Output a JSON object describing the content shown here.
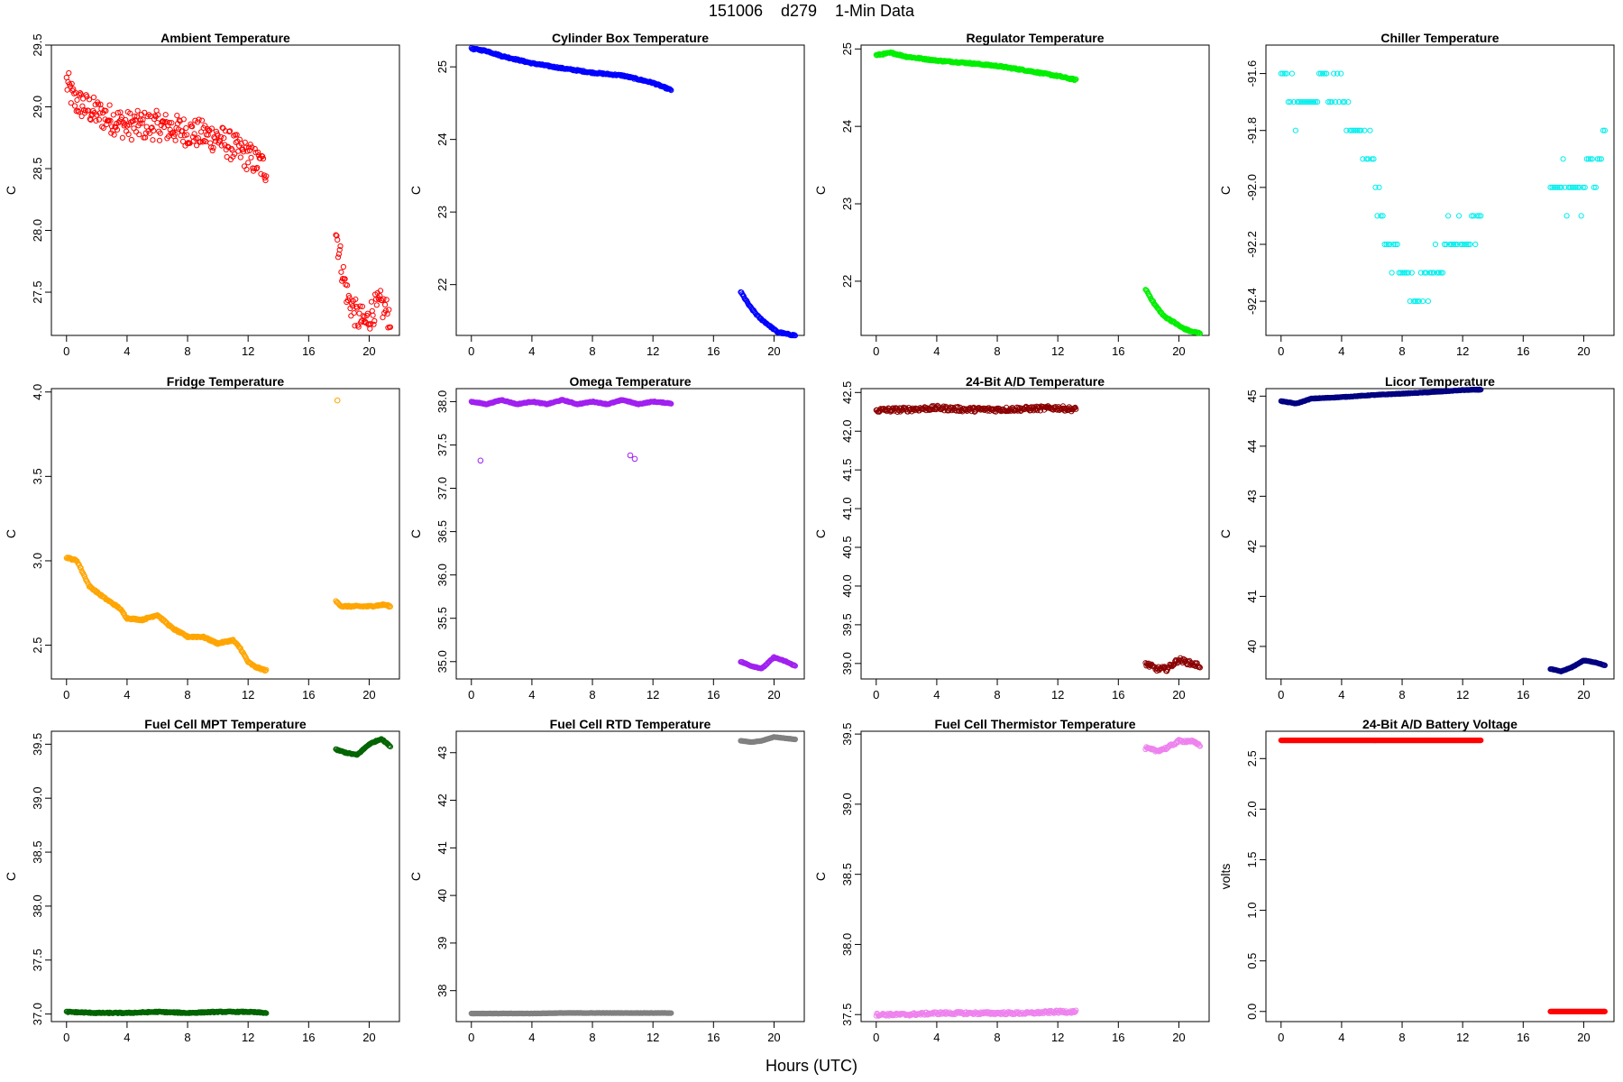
{
  "page": {
    "title": "151006    d279    1-Min Data",
    "xlabel": "Hours (UTC)"
  },
  "chart_data": [
    {
      "type": "scatter",
      "title": "Ambient Temperature",
      "ylabel": "C",
      "color": "#ff0000",
      "xlim": [
        -1,
        22
      ],
      "ylim": [
        27.15,
        29.5
      ],
      "xticks": [
        0,
        4,
        8,
        12,
        16,
        20
      ],
      "yticks": [
        27.5,
        28.0,
        28.5,
        29.0,
        29.5
      ],
      "ytick_decimals": 1,
      "noise": 0.12,
      "scatter_pattern": false,
      "segments": [
        {
          "x": [
            0,
            0.5,
            2,
            4,
            6,
            8,
            10,
            12,
            13.2
          ],
          "y": [
            29.2,
            29.05,
            28.95,
            28.85,
            28.85,
            28.8,
            28.75,
            28.6,
            28.5
          ]
        },
        {
          "x": [
            17.8,
            18.2,
            18.6,
            19.2,
            19.8,
            20.2,
            20.8,
            21.4
          ],
          "y": [
            28.0,
            27.7,
            27.45,
            27.3,
            27.25,
            27.35,
            27.4,
            27.3
          ]
        }
      ]
    },
    {
      "type": "scatter",
      "title": "Cylinder Box Temperature",
      "ylabel": "C",
      "color": "#0000ff",
      "xlim": [
        -1,
        22
      ],
      "ylim": [
        21.3,
        25.3
      ],
      "xticks": [
        0,
        4,
        8,
        12,
        16,
        20
      ],
      "yticks": [
        22,
        23,
        24,
        25
      ],
      "ytick_decimals": 0,
      "noise": 0.01,
      "scatter_pattern": false,
      "segments": [
        {
          "x": [
            0,
            1,
            2,
            4,
            6,
            8,
            10,
            12,
            13.2
          ],
          "y": [
            25.25,
            25.22,
            25.15,
            25.05,
            24.98,
            24.92,
            24.88,
            24.78,
            24.68
          ]
        },
        {
          "x": [
            17.8,
            18.4,
            19,
            19.6,
            20.2,
            20.8,
            21.4
          ],
          "y": [
            21.9,
            21.7,
            21.55,
            21.45,
            21.35,
            21.32,
            21.3
          ]
        }
      ]
    },
    {
      "type": "scatter",
      "title": "Regulator Temperature",
      "ylabel": "C",
      "color": "#00ee00",
      "xlim": [
        -1,
        22
      ],
      "ylim": [
        21.3,
        25.05
      ],
      "xticks": [
        0,
        4,
        8,
        12,
        16,
        20
      ],
      "yticks": [
        22,
        23,
        24,
        25
      ],
      "ytick_decimals": 0,
      "noise": 0.01,
      "scatter_pattern": false,
      "segments": [
        {
          "x": [
            0,
            1,
            2,
            4,
            6,
            8,
            10,
            12,
            13.2
          ],
          "y": [
            24.92,
            24.95,
            24.9,
            24.85,
            24.82,
            24.78,
            24.72,
            24.65,
            24.6
          ]
        },
        {
          "x": [
            17.8,
            18.4,
            19,
            19.6,
            20.2,
            20.8,
            21.4
          ],
          "y": [
            21.9,
            21.7,
            21.55,
            21.48,
            21.4,
            21.35,
            21.33
          ]
        }
      ]
    },
    {
      "type": "scatter",
      "title": "Chiller Temperature",
      "ylabel": "C",
      "color": "#00eeee",
      "xlim": [
        -1,
        22
      ],
      "ylim": [
        -92.52,
        -91.5
      ],
      "xticks": [
        0,
        4,
        8,
        12,
        16,
        20
      ],
      "yticks": [
        -92.4,
        -92.2,
        -92.0,
        -91.8,
        -91.6
      ],
      "ytick_decimals": 1,
      "noise": 0,
      "scatter_pattern": true,
      "segments": [
        {
          "x": [
            0,
            1,
            2,
            3,
            4,
            5,
            6,
            7,
            8,
            9,
            10,
            11,
            12,
            13.2
          ],
          "y": [
            -91.6,
            -91.7,
            -91.7,
            -91.6,
            -91.7,
            -91.8,
            -91.9,
            -92.2,
            -92.3,
            -92.4,
            -92.3,
            -92.2,
            -92.2,
            -92.1
          ]
        },
        {
          "x": [
            17.8,
            19,
            20,
            20.8,
            21.4
          ],
          "y": [
            -92.0,
            -92.0,
            -92.0,
            -91.9,
            -91.8
          ]
        }
      ]
    },
    {
      "type": "scatter",
      "title": "Fridge Temperature",
      "ylabel": "C",
      "color": "#ffa500",
      "xlim": [
        -1,
        22
      ],
      "ylim": [
        2.3,
        4.02
      ],
      "xticks": [
        0,
        4,
        8,
        12,
        16,
        20
      ],
      "yticks": [
        2.5,
        3.0,
        3.5,
        4.0
      ],
      "ytick_decimals": 1,
      "noise": 0.005,
      "scatter_pattern": false,
      "segments": [
        {
          "x": [
            0,
            0.7,
            1.5,
            2.5,
            3.5,
            4,
            5,
            6,
            7,
            8,
            9,
            10,
            11,
            11.5,
            12,
            12.5,
            13.2
          ],
          "y": [
            3.02,
            3.0,
            2.85,
            2.78,
            2.72,
            2.66,
            2.65,
            2.68,
            2.6,
            2.55,
            2.55,
            2.51,
            2.53,
            2.48,
            2.4,
            2.37,
            2.35
          ]
        },
        {
          "x": [
            17.8,
            18.2,
            19,
            20,
            21,
            21.4
          ],
          "y": [
            2.76,
            2.73,
            2.73,
            2.73,
            2.74,
            2.73
          ]
        }
      ],
      "extra_points": {
        "x": [
          17.9
        ],
        "y": [
          3.95
        ]
      }
    },
    {
      "type": "scatter",
      "title": "Omega Temperature",
      "ylabel": "C",
      "color": "#a020f0",
      "xlim": [
        -1,
        22
      ],
      "ylim": [
        34.8,
        38.15
      ],
      "xticks": [
        0,
        4,
        8,
        12,
        16,
        20
      ],
      "yticks": [
        35.0,
        35.5,
        36.0,
        36.5,
        37.0,
        37.5,
        38.0
      ],
      "ytick_decimals": 1,
      "noise": 0.005,
      "scatter_pattern": false,
      "segments": [
        {
          "x": [
            0,
            1,
            2,
            3,
            4,
            5,
            6,
            7,
            8,
            9,
            10,
            11,
            12,
            13.2
          ],
          "y": [
            38.0,
            37.97,
            38.02,
            37.97,
            38.0,
            37.97,
            38.02,
            37.97,
            38.0,
            37.97,
            38.02,
            37.97,
            38.0,
            37.98
          ]
        },
        {
          "x": [
            17.8,
            18.5,
            19.2,
            20,
            20.8,
            21.4
          ],
          "y": [
            35.0,
            34.95,
            34.92,
            35.05,
            35.0,
            34.95
          ]
        }
      ],
      "extra_points": {
        "x": [
          0.6,
          10.5,
          10.8
        ],
        "y": [
          37.32,
          37.38,
          37.34
        ]
      }
    },
    {
      "type": "scatter",
      "title": "24-Bit A/D Temperature",
      "ylabel": "C",
      "color": "#8b0000",
      "xlim": [
        -1,
        22
      ],
      "ylim": [
        38.8,
        42.55
      ],
      "xticks": [
        0,
        4,
        8,
        12,
        16,
        20
      ],
      "yticks": [
        39.0,
        39.5,
        40.0,
        40.5,
        41.0,
        41.5,
        42.0,
        42.5
      ],
      "ytick_decimals": 1,
      "noise": 0.03,
      "scatter_pattern": false,
      "segments": [
        {
          "x": [
            0,
            2,
            4,
            6,
            8,
            10,
            12,
            13.2
          ],
          "y": [
            42.27,
            42.28,
            42.3,
            42.28,
            42.28,
            42.29,
            42.3,
            42.28
          ]
        },
        {
          "x": [
            17.8,
            18.5,
            19.2,
            20,
            20.8,
            21.4
          ],
          "y": [
            39.0,
            38.93,
            38.93,
            39.05,
            39.0,
            38.97
          ]
        }
      ]
    },
    {
      "type": "scatter",
      "title": "Licor Temperature",
      "ylabel": "C",
      "color": "#000080",
      "xlim": [
        -1,
        22
      ],
      "ylim": [
        39.35,
        45.15
      ],
      "xticks": [
        0,
        4,
        8,
        12,
        16,
        20
      ],
      "yticks": [
        40,
        41,
        42,
        43,
        44,
        45
      ],
      "ytick_decimals": 0,
      "noise": 0.005,
      "scatter_pattern": false,
      "segments": [
        {
          "x": [
            0,
            1,
            2,
            4,
            6,
            8,
            10,
            12,
            13.2
          ],
          "y": [
            44.9,
            44.85,
            44.95,
            44.98,
            45.02,
            45.05,
            45.08,
            45.12,
            45.13
          ]
        },
        {
          "x": [
            17.8,
            18.5,
            19.2,
            20,
            20.8,
            21.4
          ],
          "y": [
            39.55,
            39.5,
            39.58,
            39.72,
            39.68,
            39.62
          ]
        }
      ]
    },
    {
      "type": "scatter",
      "title": "Fuel Cell MPT Temperature",
      "ylabel": "C",
      "color": "#006400",
      "xlim": [
        -1,
        22
      ],
      "ylim": [
        36.93,
        39.62
      ],
      "xticks": [
        0,
        4,
        8,
        12,
        16,
        20
      ],
      "yticks": [
        37.0,
        37.5,
        38.0,
        38.5,
        39.0,
        39.5
      ],
      "ytick_decimals": 1,
      "noise": 0.005,
      "scatter_pattern": false,
      "segments": [
        {
          "x": [
            0,
            2,
            4,
            6,
            8,
            10,
            12,
            13.2
          ],
          "y": [
            37.02,
            37.01,
            37.01,
            37.02,
            37.01,
            37.02,
            37.02,
            37.01
          ]
        },
        {
          "x": [
            17.8,
            18.5,
            19.2,
            20,
            20.8,
            21.4
          ],
          "y": [
            39.45,
            39.42,
            39.4,
            39.5,
            39.55,
            39.48
          ]
        }
      ]
    },
    {
      "type": "scatter",
      "title": "Fuel Cell RTD Temperature",
      "ylabel": "C",
      "color": "#808080",
      "xlim": [
        -1,
        22
      ],
      "ylim": [
        37.35,
        43.45
      ],
      "xticks": [
        0,
        4,
        8,
        12,
        16,
        20
      ],
      "yticks": [
        38,
        39,
        40,
        41,
        42,
        43
      ],
      "ytick_decimals": 0,
      "noise": 0.003,
      "scatter_pattern": false,
      "segments": [
        {
          "x": [
            0,
            2,
            4,
            6,
            8,
            10,
            12,
            13.2
          ],
          "y": [
            37.52,
            37.52,
            37.52,
            37.53,
            37.53,
            37.53,
            37.53,
            37.53
          ]
        },
        {
          "x": [
            17.8,
            18.5,
            19.2,
            20,
            20.8,
            21.4
          ],
          "y": [
            43.25,
            43.22,
            43.25,
            43.33,
            43.3,
            43.28
          ]
        }
      ]
    },
    {
      "type": "scatter",
      "title": "Fuel Cell Thermistor Temperature",
      "ylabel": "C",
      "color": "#ee82ee",
      "xlim": [
        -1,
        22
      ],
      "ylim": [
        37.45,
        39.52
      ],
      "xticks": [
        0,
        4,
        8,
        12,
        16,
        20
      ],
      "yticks": [
        37.5,
        38.0,
        38.5,
        39.0,
        39.5
      ],
      "ytick_decimals": 1,
      "noise": 0.01,
      "scatter_pattern": false,
      "segments": [
        {
          "x": [
            0,
            2,
            4,
            6,
            8,
            10,
            12,
            13.2
          ],
          "y": [
            37.5,
            37.5,
            37.51,
            37.51,
            37.51,
            37.51,
            37.52,
            37.52
          ]
        },
        {
          "x": [
            17.8,
            18.5,
            19.2,
            20,
            20.8,
            21.4
          ],
          "y": [
            39.4,
            39.38,
            39.4,
            39.45,
            39.45,
            39.42
          ]
        }
      ]
    },
    {
      "type": "scatter",
      "title": "24-Bit A/D Battery Voltage",
      "ylabel": "volts",
      "color": "#ff0000",
      "xlim": [
        -1,
        22
      ],
      "ylim": [
        -0.1,
        2.77
      ],
      "xticks": [
        0,
        4,
        8,
        12,
        16,
        20
      ],
      "yticks": [
        0.0,
        0.5,
        1.0,
        1.5,
        2.0,
        2.5
      ],
      "ytick_decimals": 1,
      "noise": 0,
      "scatter_pattern": false,
      "segments": [
        {
          "x": [
            0,
            13.2
          ],
          "y": [
            2.68,
            2.68
          ]
        },
        {
          "x": [
            17.8,
            21.4
          ],
          "y": [
            0.0,
            0.0
          ]
        }
      ]
    }
  ]
}
